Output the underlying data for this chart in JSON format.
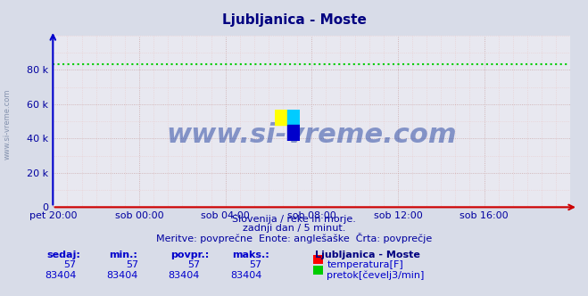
{
  "title": "Ljubljanica - Moste",
  "title_color": "#000080",
  "bg_color": "#d8dce8",
  "plot_bg_color": "#e8e8f0",
  "grid_color_major": "#c8a0a0",
  "grid_color_minor": "#e8c8c8",
  "x_label_color": "#0000a0",
  "y_label_color": "#0000a0",
  "figsize": [
    6.59,
    3.32
  ],
  "dpi": 100,
  "xlim": [
    0,
    288
  ],
  "ylim": [
    0,
    100000
  ],
  "yticks": [
    0,
    20000,
    40000,
    60000,
    80000
  ],
  "ytick_labels": [
    "0",
    "20 k",
    "40 k",
    "60 k",
    "80 k"
  ],
  "xtick_positions": [
    0,
    48,
    96,
    144,
    192,
    240
  ],
  "xtick_labels": [
    "pet 20:00",
    "sob 00:00",
    "sob 04:00",
    "sob 08:00",
    "sob 12:00",
    "sob 16:00"
  ],
  "temp_value": 57,
  "flow_value": 83404,
  "temp_line_color": "#ff0000",
  "flow_line_color": "#00cc00",
  "arrow_color": "#cc0000",
  "axis_color": "#0000cc",
  "subtitle1": "Slovenija / reke in morje.",
  "subtitle2": "zadnji dan / 5 minut.",
  "subtitle3": "Meritve: povprečne  Enote: anglešaške  Črta: povprečje",
  "subtitle_color": "#0000a0",
  "legend_title": "Ljubljanica - Moste",
  "legend_title_color": "#000080",
  "legend_label1": "temperatura[F]",
  "legend_label2": "pretok[čevelj3/min]",
  "legend_color1": "#ff0000",
  "legend_color2": "#00cc00",
  "table_headers": [
    "sedaj:",
    "min.:",
    "povpr.:",
    "maks.:"
  ],
  "table_color": "#0000cc",
  "table_values_temp": [
    "57",
    "57",
    "57",
    "57"
  ],
  "table_values_flow": [
    "83404",
    "83404",
    "83404",
    "83404"
  ],
  "watermark": "www.si-vreme.com",
  "watermark_color": "#2040a0",
  "side_label": "www.si-vreme.com"
}
